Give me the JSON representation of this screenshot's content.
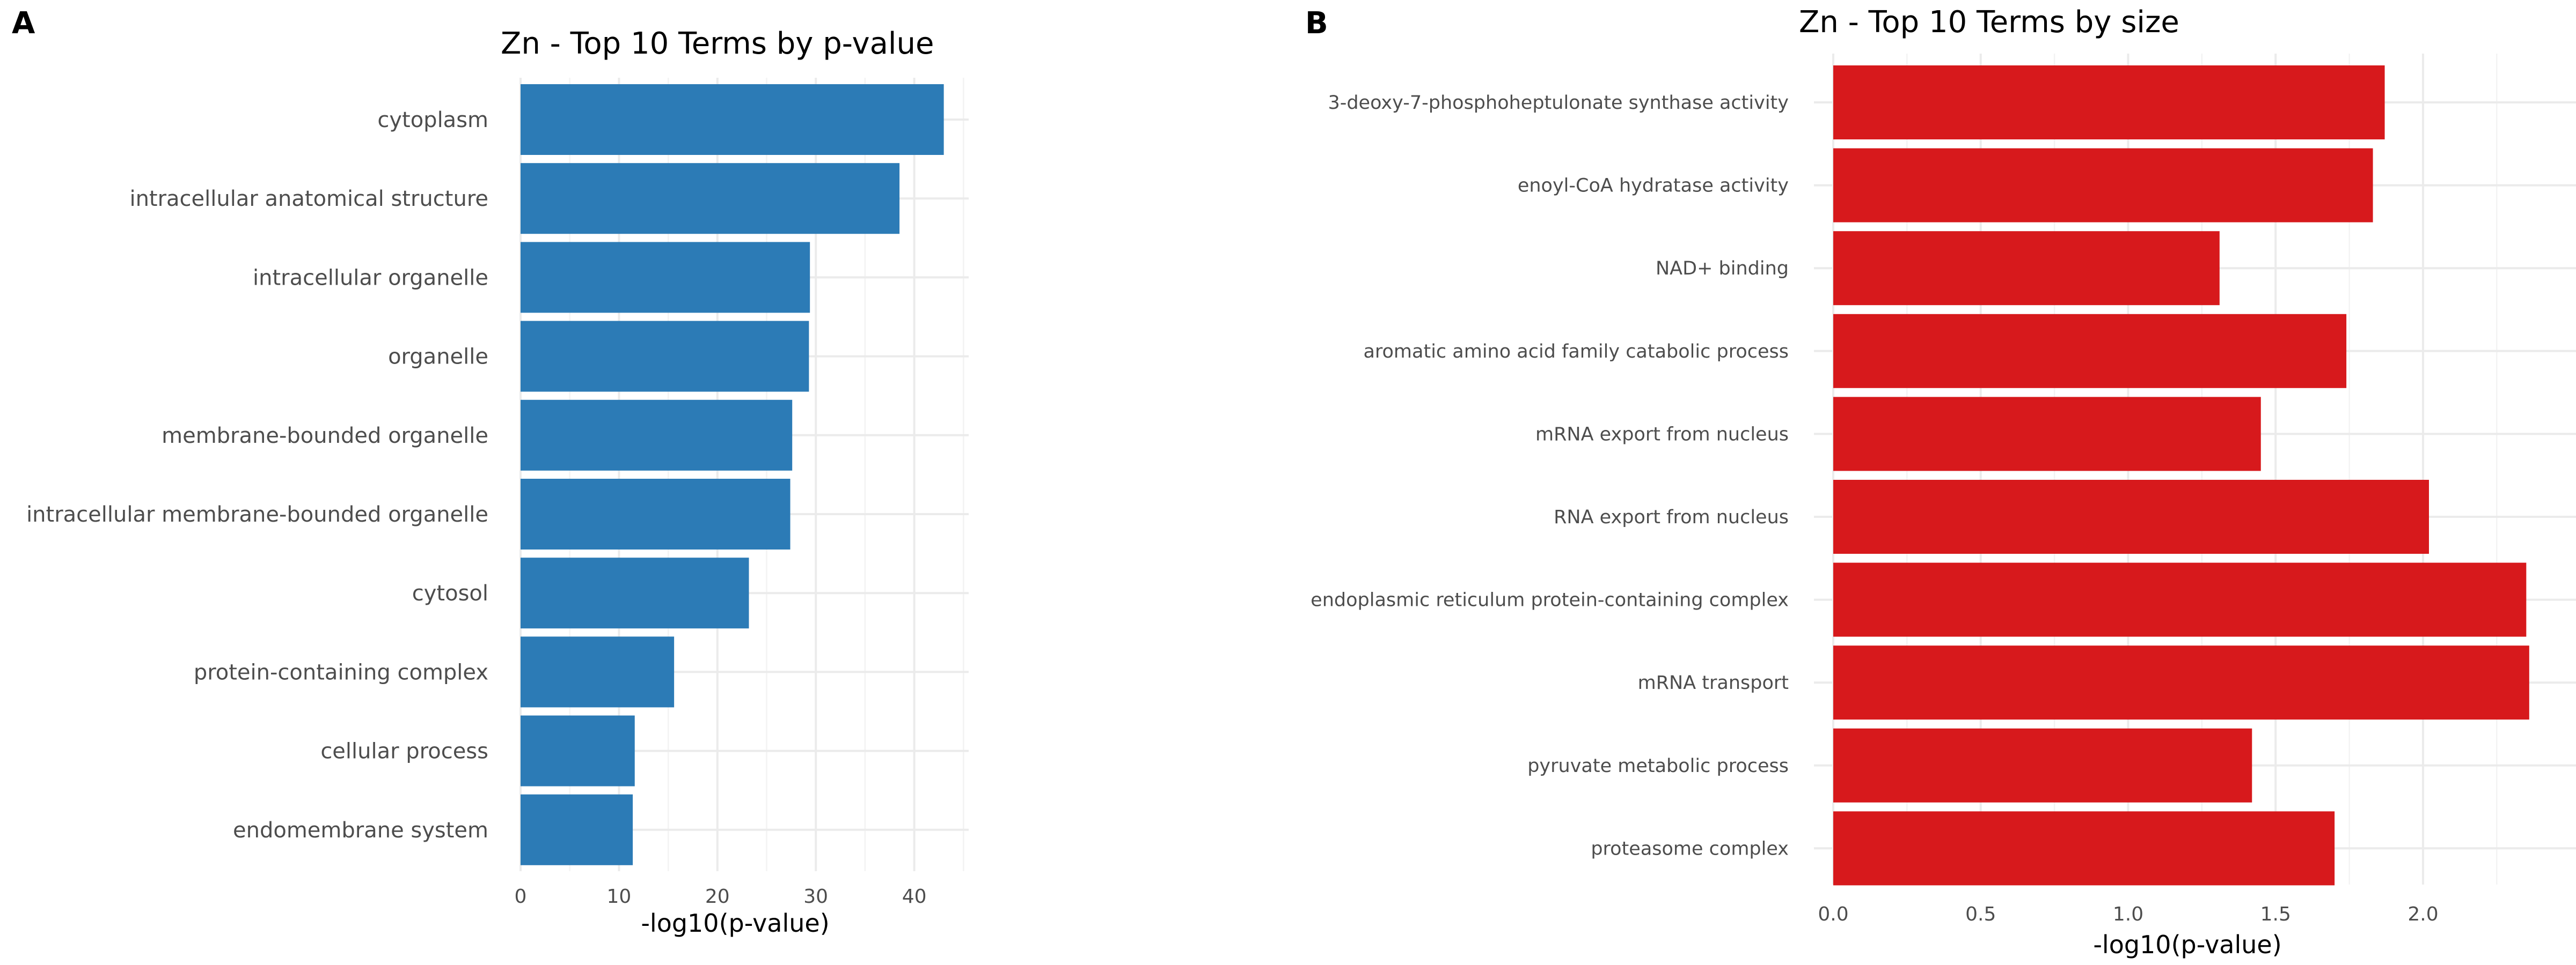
{
  "panels": {
    "a": {
      "label": "A"
    },
    "b": {
      "label": "B"
    }
  },
  "chart_data": [
    {
      "type": "bar",
      "orientation": "horizontal",
      "title": "Zn - Top 10 Terms by p-value",
      "xlabel": "-log10(p-value)",
      "ylabel": "",
      "color": "#2c7bb6",
      "xlim": [
        0,
        45
      ],
      "xticks": [
        0,
        10,
        20,
        30,
        40
      ],
      "grid": true,
      "categories": [
        "cytoplasm",
        "intracellular anatomical structure",
        "intracellular organelle",
        "organelle",
        "membrane-bounded organelle",
        "intracellular membrane-bounded organelle",
        "cytosol",
        "protein-containing complex",
        "cellular process",
        "endomembrane system"
      ],
      "values": [
        43.0,
        38.5,
        29.4,
        29.3,
        27.6,
        27.4,
        23.2,
        15.6,
        11.6,
        11.4
      ]
    },
    {
      "type": "bar",
      "orientation": "horizontal",
      "title": "Zn - Top 10 Terms by size",
      "xlabel": "-log10(p-value)",
      "ylabel": "",
      "color": "#d7191c",
      "xlim": [
        0,
        2.4
      ],
      "xticks": [
        0.0,
        0.5,
        1.0,
        1.5,
        2.0
      ],
      "xtick_labels": [
        "0.0",
        "0.5",
        "1.0",
        "1.5",
        "2.0"
      ],
      "grid": true,
      "categories": [
        "3-deoxy-7-phosphoheptulonate synthase activity",
        "enoyl-CoA hydratase activity",
        "NAD+ binding",
        "aromatic amino acid family catabolic process",
        "mRNA export from nucleus",
        "RNA export from nucleus",
        "endoplasmic reticulum protein-containing complex",
        "mRNA transport",
        "pyruvate metabolic process",
        "proteasome complex"
      ],
      "values": [
        1.87,
        1.83,
        1.31,
        1.74,
        1.45,
        2.02,
        2.35,
        2.36,
        1.42,
        1.7
      ]
    }
  ]
}
